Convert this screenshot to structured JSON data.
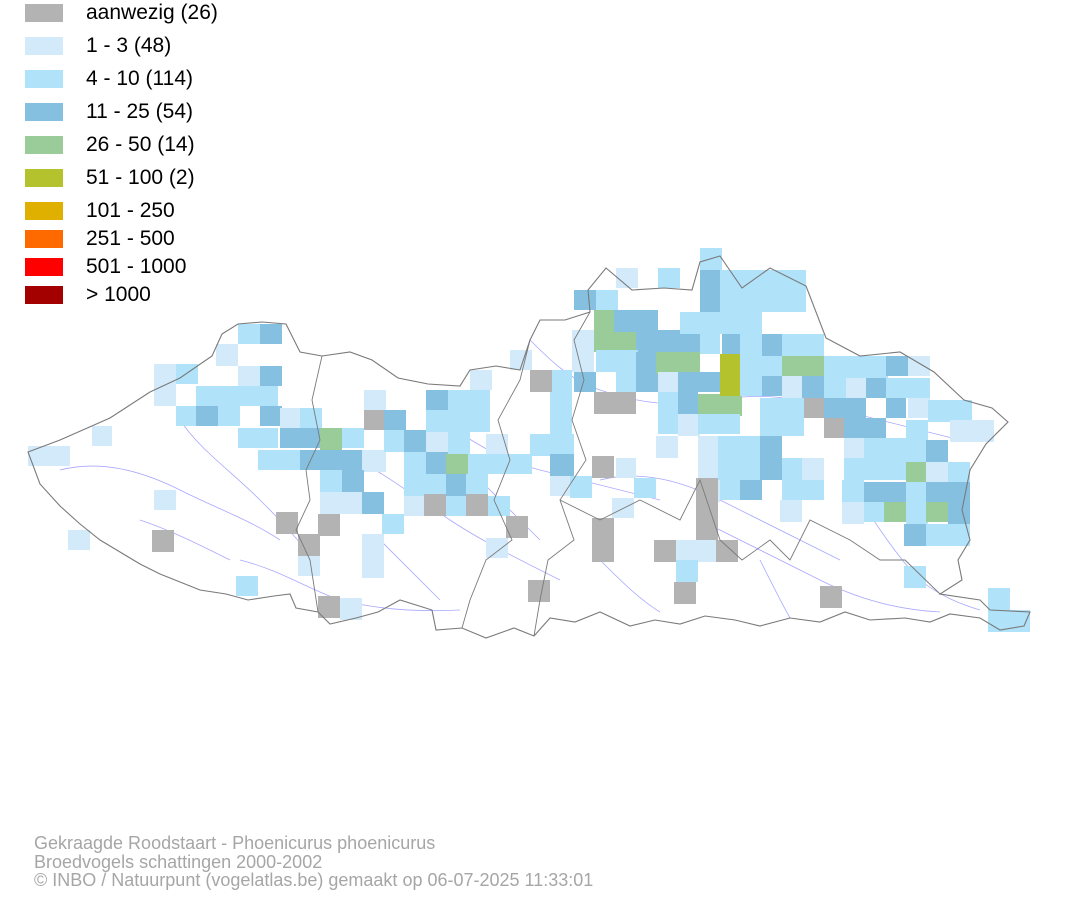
{
  "legend": [
    {
      "label": "aanwezig (26)",
      "color": "#b3b3b3"
    },
    {
      "label": "1 - 3 (48)",
      "color": "#d3eafa"
    },
    {
      "label": "4 - 10 (114)",
      "color": "#b0e2fa"
    },
    {
      "label": "11 - 25 (54)",
      "color": "#85c0e0"
    },
    {
      "label": "26 - 50 (14)",
      "color": "#99cc99"
    },
    {
      "label": "51 - 100 (2)",
      "color": "#b3c22d"
    },
    {
      "label": "101 - 250",
      "color": "#e0b000"
    },
    {
      "label": "251 - 500",
      "color": "#ff6a00"
    },
    {
      "label": "501 - 1000",
      "color": "#ff0000"
    },
    {
      "label": "> 1000",
      "color": "#a30000"
    }
  ],
  "map": {
    "border_color": "#7a7a7a",
    "river_color": "#a8a8ff"
  },
  "footer": {
    "species": "Gekraagde Roodstaart - Phoenicurus phoenicurus",
    "dataset": "Broedvogels schattingen 2000-2002",
    "credit": "© INBO / Natuurpunt (vogelatlas.be) gemaakt op 06-07-2025 11:33:01"
  }
}
